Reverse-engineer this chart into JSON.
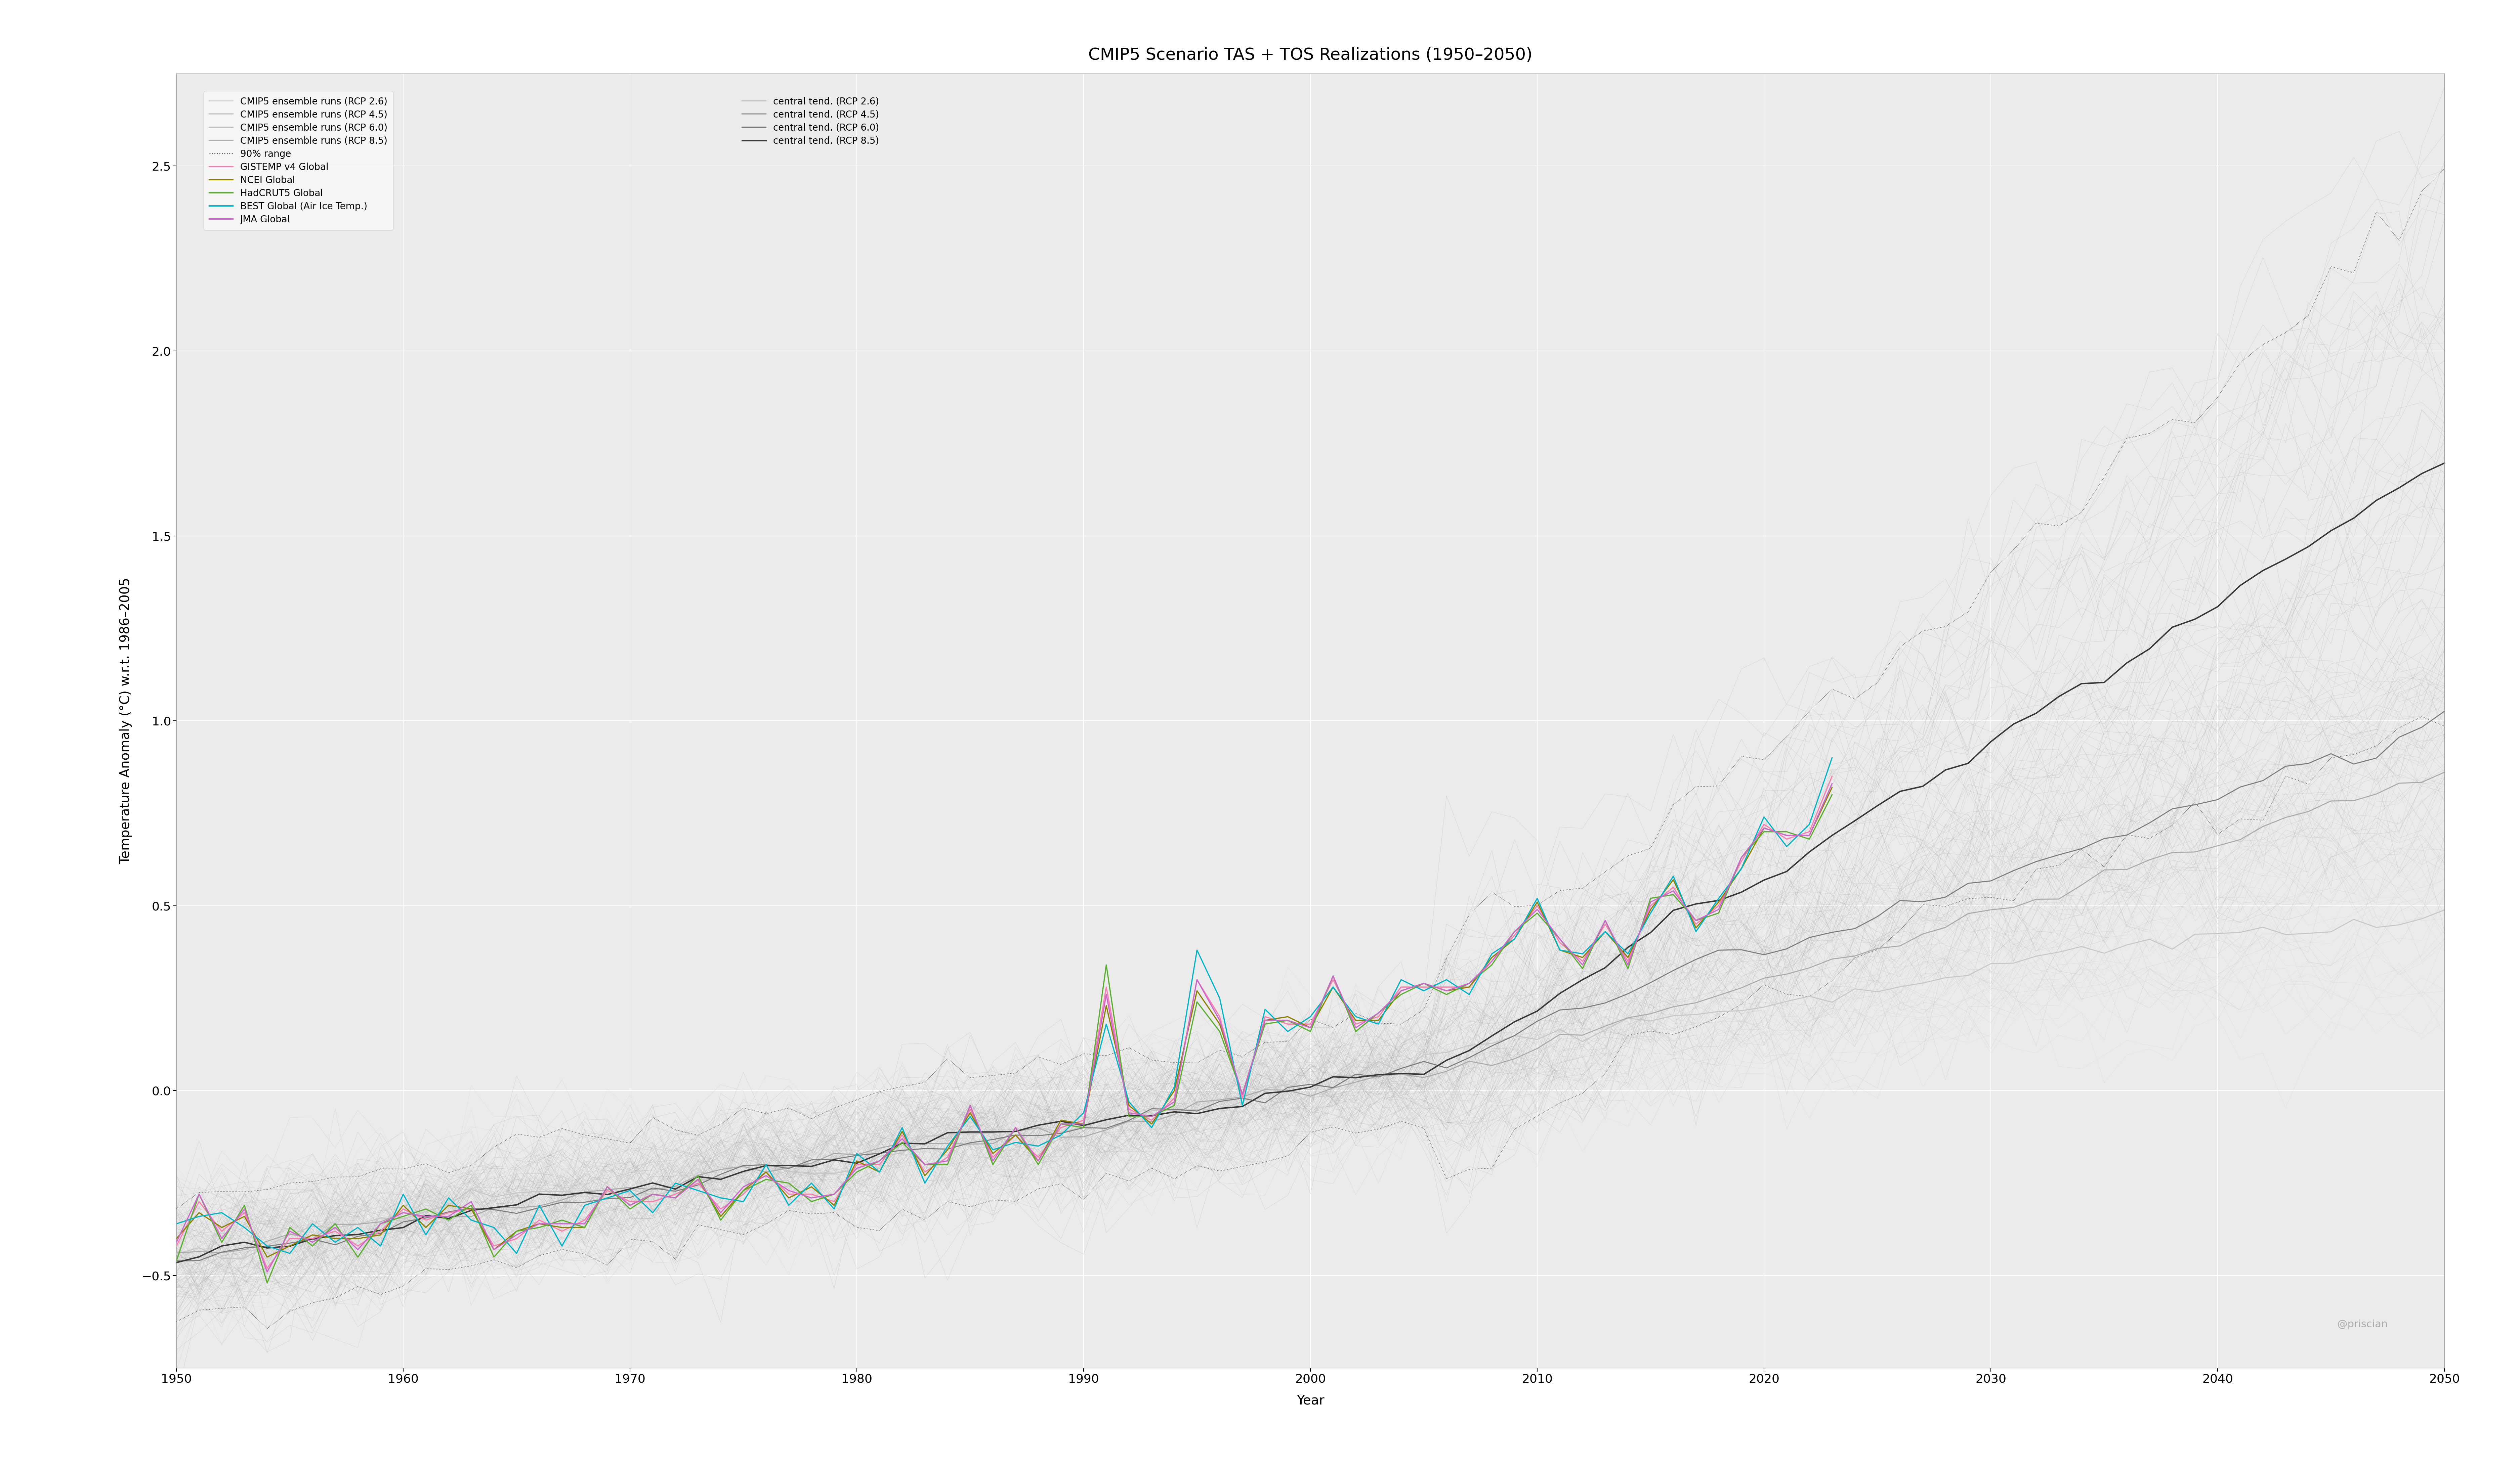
{
  "title": "CMIP5 Scenario TAS + TOS Realizations (1950–2050)",
  "xlabel": "Year",
  "ylabel": "Temperature Anomaly (°C) w.r.t. 1986–2005",
  "xlim": [
    1950,
    2050
  ],
  "ylim": [
    -0.75,
    2.75
  ],
  "yticks": [
    -0.5,
    0.0,
    0.5,
    1.0,
    1.5,
    2.0,
    2.5
  ],
  "xticks": [
    1950,
    1960,
    1970,
    1980,
    1990,
    2000,
    2010,
    2020,
    2030,
    2040,
    2050
  ],
  "background_color": "#ffffff",
  "plot_bg_color": "#ebebeb",
  "grid_color": "#ffffff",
  "ensemble_color_rcp26": "#cccccc",
  "ensemble_color_rcp45": "#bbbbbb",
  "ensemble_color_rcp60": "#aaaaaa",
  "ensemble_color_rcp85": "#999999",
  "central_color_rcp26": "#c8c8c8",
  "central_color_rcp45": "#ababab",
  "central_color_rcp60": "#7d7d7d",
  "central_color_rcp85": "#383838",
  "dotted_range_color": "#555555",
  "obs_colors": {
    "GISTEMP": "#f77fb1",
    "NCEI": "#8b8000",
    "HadCRUT5": "#5aad2e",
    "BEST": "#00b4c8",
    "JMA": "#cc66cc"
  },
  "obs_linewidth": 2.5,
  "ensemble_alpha_rcp26": 0.35,
  "ensemble_alpha_rcp45": 0.35,
  "ensemble_alpha_rcp60": 0.35,
  "ensemble_alpha_rcp85": 0.28,
  "ensemble_linewidth": 0.7,
  "central_linewidth": 2.2,
  "central_linewidth_rcp85": 3.0,
  "dotted_linewidth": 1.2,
  "title_fontsize": 36,
  "axis_label_fontsize": 28,
  "tick_fontsize": 26,
  "legend_fontsize": 20,
  "annotation_text": "@priscian",
  "annotation_fontsize": 22,
  "figwidth": 75.0,
  "figheight": 43.8,
  "dpi": 100
}
